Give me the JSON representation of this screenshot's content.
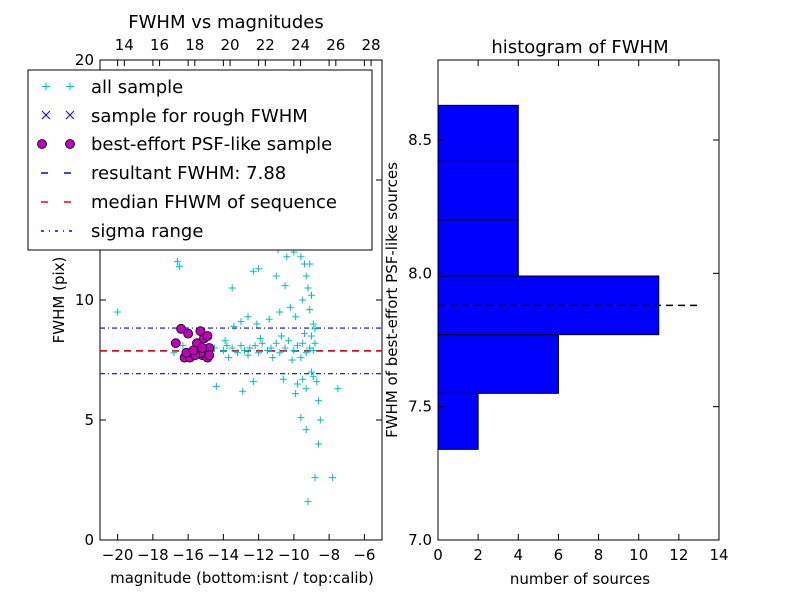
{
  "chart_data": [
    {
      "type": "scatter",
      "title": "FWHM vs magnitudes",
      "xlabel": "magnitude (bottom:isnt / top:calib)",
      "ylabel": "FWHM (pix)",
      "xlim": [
        -21,
        -5
      ],
      "ylim": [
        0,
        20
      ],
      "x_ticks": [
        -20,
        -18,
        -16,
        -14,
        -12,
        -10,
        -8,
        -6
      ],
      "x_tick_labels": [
        "−20",
        "−18",
        "−16",
        "−14",
        "−12",
        "−10",
        "−8",
        "−6"
      ],
      "y_ticks": [
        0,
        5,
        10,
        15,
        20
      ],
      "y_tick_labels": [
        "0",
        "5",
        "10",
        "",
        "20"
      ],
      "top_axis": {
        "xlim": [
          12.62,
          28.62
        ],
        "ticks": [
          14,
          16,
          18,
          20,
          22,
          24,
          26,
          28
        ],
        "tick_labels": [
          "14",
          "16",
          "18",
          "20",
          "22",
          "24",
          "26",
          "28"
        ]
      },
      "hlines": {
        "resultant_fwhm": 7.88,
        "median": 7.88,
        "sigma_low": 6.93,
        "sigma_high": 8.83
      },
      "colors": {
        "all": "#00bfbf",
        "rough": "#0000ff",
        "best": "#bf00bf",
        "resultant": "#0000ff",
        "median": "#ff0000",
        "sigma": "#0000ff"
      },
      "legend": {
        "position": "top-left",
        "entries": [
          {
            "label": "all sample",
            "style": "plus"
          },
          {
            "label": "sample for rough FWHM",
            "style": "x"
          },
          {
            "label": "best-effort PSF-like sample",
            "style": "circle"
          },
          {
            "label": "resultant FWHM: 7.88",
            "style": "dashed-blue"
          },
          {
            "label": "median FHWM of sequence",
            "style": "dashed-red"
          },
          {
            "label": "sigma range",
            "style": "dashdot-blue"
          }
        ]
      },
      "series": [
        {
          "name": "best-effort PSF-like sample",
          "points": [
            [
              -16.4,
              8.8
            ],
            [
              -16.7,
              8.2
            ],
            [
              -16.2,
              7.6
            ],
            [
              -16.0,
              8.6
            ],
            [
              -15.9,
              7.6
            ],
            [
              -15.5,
              8.2
            ],
            [
              -15.3,
              8.7
            ],
            [
              -15.2,
              7.7
            ],
            [
              -15.1,
              8.4
            ],
            [
              -15.0,
              7.9
            ],
            [
              -14.9,
              7.8
            ],
            [
              -14.9,
              8.5
            ],
            [
              -14.8,
              8.0
            ],
            [
              -14.9,
              7.6
            ],
            [
              -15.3,
              7.8
            ],
            [
              -15.6,
              7.7
            ],
            [
              -16.1,
              7.8
            ],
            [
              -15.7,
              7.9
            ],
            [
              -15.2,
              8.0
            ],
            [
              -14.8,
              7.7
            ]
          ]
        },
        {
          "name": "all sample",
          "points": [
            [
              -20.0,
              9.5
            ],
            [
              -16.8,
              7.8
            ],
            [
              -16.3,
              8.1
            ],
            [
              -14.5,
              8.0
            ],
            [
              -14.0,
              7.9
            ],
            [
              -13.8,
              8.1
            ],
            [
              -13.5,
              8.0
            ],
            [
              -13.2,
              7.8
            ],
            [
              -13.0,
              8.1
            ],
            [
              -12.8,
              7.9
            ],
            [
              -12.5,
              8.0
            ],
            [
              -12.2,
              8.1
            ],
            [
              -12.0,
              7.8
            ],
            [
              -11.8,
              8.2
            ],
            [
              -11.5,
              7.9
            ],
            [
              -11.3,
              8.0
            ],
            [
              -11.0,
              8.2
            ],
            [
              -10.8,
              7.8
            ],
            [
              -10.5,
              8.0
            ],
            [
              -10.3,
              8.3
            ],
            [
              -10.0,
              7.9
            ],
            [
              -9.8,
              8.1
            ],
            [
              -9.5,
              8.2
            ],
            [
              -9.3,
              7.8
            ],
            [
              -9.1,
              8.0
            ],
            [
              -9.0,
              8.5
            ],
            [
              -8.9,
              7.9
            ],
            [
              -8.8,
              8.2
            ],
            [
              -13.7,
              7.6
            ],
            [
              -12.6,
              7.7
            ],
            [
              -11.2,
              7.6
            ],
            [
              -10.1,
              7.5
            ],
            [
              -9.6,
              7.6
            ],
            [
              -13.9,
              8.3
            ],
            [
              -11.9,
              8.4
            ],
            [
              -10.7,
              8.5
            ],
            [
              -9.4,
              8.6
            ],
            [
              -16.6,
              11.6
            ],
            [
              -16.5,
              11.4
            ],
            [
              -12.0,
              11.3
            ],
            [
              -12.3,
              11.2
            ],
            [
              -13.5,
              10.5
            ],
            [
              -11.0,
              11.0
            ],
            [
              -10.5,
              10.6
            ],
            [
              -10.0,
              12.0
            ],
            [
              -9.8,
              12.3
            ],
            [
              -9.6,
              11.8
            ],
            [
              -9.4,
              11.5
            ],
            [
              -9.3,
              11.0
            ],
            [
              -9.2,
              10.5
            ],
            [
              -9.0,
              10.2
            ],
            [
              -9.5,
              10.0
            ],
            [
              -10.2,
              9.7
            ],
            [
              -10.8,
              9.5
            ],
            [
              -11.4,
              9.2
            ],
            [
              -12.1,
              9.0
            ],
            [
              -12.6,
              9.3
            ],
            [
              -13.0,
              9.1
            ],
            [
              -13.4,
              8.9
            ],
            [
              -9.9,
              9.3
            ],
            [
              -9.1,
              9.6
            ],
            [
              -8.9,
              9.0
            ],
            [
              -8.8,
              8.8
            ],
            [
              -9.7,
              12.5
            ],
            [
              -9.5,
              13.0
            ],
            [
              -9.3,
              12.8
            ],
            [
              -9.1,
              11.5
            ],
            [
              -10.4,
              11.8
            ],
            [
              -11.5,
              12.3
            ],
            [
              -10.9,
              12.1
            ],
            [
              -9.0,
              7.0
            ],
            [
              -8.9,
              6.8
            ],
            [
              -8.7,
              6.6
            ],
            [
              -9.5,
              6.7
            ],
            [
              -9.8,
              6.5
            ],
            [
              -10.6,
              6.7
            ],
            [
              -12.3,
              6.6
            ],
            [
              -14.4,
              6.4
            ],
            [
              -12.9,
              6.2
            ],
            [
              -9.3,
              6.3
            ],
            [
              -9.9,
              6.1
            ],
            [
              -8.6,
              5.8
            ],
            [
              -7.5,
              6.3
            ],
            [
              -8.8,
              2.6
            ],
            [
              -7.8,
              2.6
            ],
            [
              -9.2,
              1.6
            ],
            [
              -8.6,
              4.0
            ],
            [
              -8.5,
              5.0
            ],
            [
              -9.6,
              5.1
            ],
            [
              -9.3,
              4.6
            ]
          ]
        }
      ]
    },
    {
      "type": "bar",
      "orientation": "horizontal",
      "title": "histogram of FWHM",
      "xlabel": "number of sources",
      "ylabel": "FWHM of best-effort PSF-like sources",
      "xlim": [
        0,
        14
      ],
      "ylim": [
        7.0,
        8.8
      ],
      "x_ticks": [
        0,
        2,
        4,
        6,
        8,
        10,
        12,
        14
      ],
      "y_ticks": [
        7.0,
        7.5,
        8.0,
        8.5
      ],
      "y_tick_labels": [
        "7.0",
        "7.5",
        "8.0",
        "8.5"
      ],
      "bins": [
        {
          "from": 7.34,
          "to": 7.55,
          "count": 2
        },
        {
          "from": 7.55,
          "to": 7.77,
          "count": 6
        },
        {
          "from": 7.77,
          "to": 7.99,
          "count": 11
        },
        {
          "from": 7.99,
          "to": 8.2,
          "count": 4
        },
        {
          "from": 8.2,
          "to": 8.42,
          "count": 4
        },
        {
          "from": 8.42,
          "to": 8.63,
          "count": 4
        }
      ],
      "reference_line": {
        "y": 7.88,
        "x_range": [
          0,
          13
        ],
        "style": "dashed-black"
      },
      "bar_color": "#0000ff"
    }
  ]
}
